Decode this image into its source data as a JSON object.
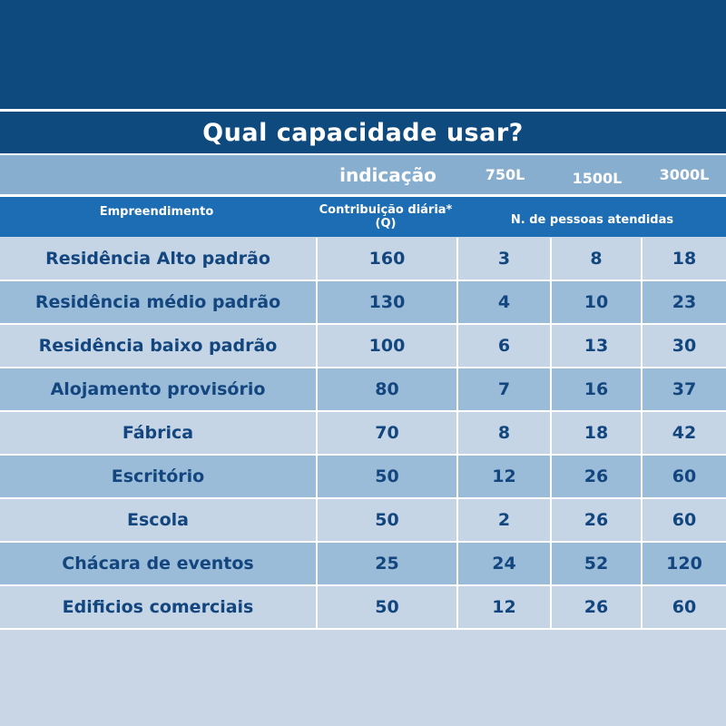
{
  "title": "Qual capacidade usar?",
  "capacity_row": {
    "indicacao": "indicação",
    "capacities": [
      "750L",
      "1500L",
      "3000L"
    ]
  },
  "header": {
    "empreendimento": "Empreendimento",
    "contribuicao": "Contribuição diária* (Q)",
    "pessoas": "N. de pessoas atendidas"
  },
  "rows": [
    {
      "name": "Residência Alto padrão",
      "q": "160",
      "c750": "3",
      "c1500": "8",
      "c3000": "18"
    },
    {
      "name": "Residência médio padrão",
      "q": "130",
      "c750": "4",
      "c1500": "10",
      "c3000": "23"
    },
    {
      "name": "Residência baixo padrão",
      "q": "100",
      "c750": "6",
      "c1500": "13",
      "c3000": "30"
    },
    {
      "name": "Alojamento provisório",
      "q": "80",
      "c750": "7",
      "c1500": "16",
      "c3000": "37"
    },
    {
      "name": "Fábrica",
      "q": "70",
      "c750": "8",
      "c1500": "18",
      "c3000": "42"
    },
    {
      "name": "Escritório",
      "q": "50",
      "c750": "12",
      "c1500": "26",
      "c3000": "60"
    },
    {
      "name": "Escola",
      "q": "50",
      "c750": "2",
      "c1500": "26",
      "c3000": "60"
    },
    {
      "name": "Chácara de eventos",
      "q": "25",
      "c750": "24",
      "c1500": "52",
      "c3000": "120"
    },
    {
      "name": "Edificios comerciais",
      "q": "50",
      "c750": "12",
      "c1500": "26",
      "c3000": "60"
    }
  ],
  "colors": {
    "dark_blue": "#0e4a7e",
    "mid_blue": "#1c6db3",
    "light_blue": "#88aecf",
    "row_light": "#c5d5e6",
    "row_mid": "#9bbcd9",
    "text": "#13467e"
  }
}
